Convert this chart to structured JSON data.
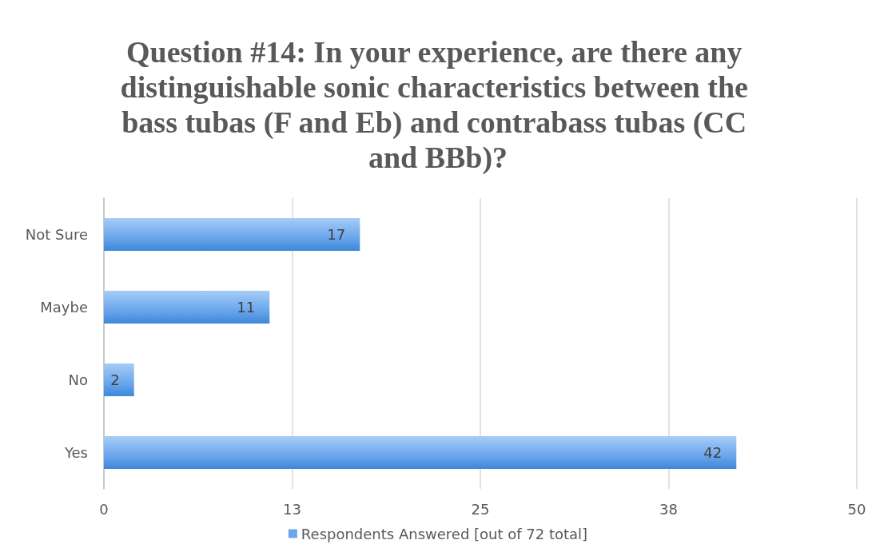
{
  "chart_data": {
    "type": "bar",
    "orientation": "horizontal",
    "title": "Question #14: In your experience, are there any distinguishable sonic characteristics between the bass tubas (F and Eb) and contrabass tubas (CC and BBb)?",
    "categories": [
      "Not Sure",
      "Maybe",
      "No",
      "Yes"
    ],
    "series": [
      {
        "name": "Respondents Answered [out of 72 total]",
        "color": "#6aa6ec",
        "values": [
          17,
          11,
          2,
          42
        ]
      }
    ],
    "xlim": [
      0,
      50
    ],
    "xticks": [
      0,
      {
        "value": 12.5,
        "label": "13"
      },
      25,
      {
        "value": 37.5,
        "label": "38"
      },
      50
    ],
    "grid": "x",
    "legend": "bottom",
    "data_labels": true
  }
}
